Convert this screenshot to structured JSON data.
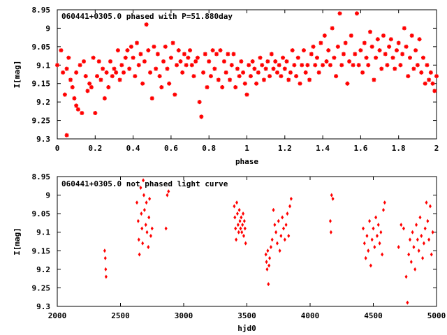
{
  "chart_data": [
    {
      "type": "scatter",
      "title": "060441+0305.0 phased with P=51.880day",
      "xlabel": "phase",
      "ylabel": "I[mag]",
      "xlim": [
        0,
        2
      ],
      "ylim": [
        9.3,
        8.95
      ],
      "y_inverted": true,
      "grid": false,
      "color": "#ff0000",
      "marker": "star",
      "xticks": [
        "0",
        "0.2",
        "0.4",
        "0.6",
        "0.8",
        "1",
        "1.2",
        "1.4",
        "1.6",
        "1.8",
        "2"
      ],
      "yticks": [
        "8.95",
        "9",
        "9.05",
        "9.1",
        "9.15",
        "9.2",
        "9.25",
        "9.3"
      ],
      "points": [
        [
          0.0,
          9.1
        ],
        [
          0.02,
          9.06
        ],
        [
          0.03,
          9.12
        ],
        [
          0.04,
          9.18
        ],
        [
          0.05,
          9.29
        ],
        [
          0.05,
          9.11
        ],
        [
          0.06,
          9.08
        ],
        [
          0.07,
          9.14
        ],
        [
          0.08,
          9.16
        ],
        [
          0.09,
          9.19
        ],
        [
          0.1,
          9.12
        ],
        [
          0.1,
          9.21
        ],
        [
          0.11,
          9.22
        ],
        [
          0.12,
          9.1
        ],
        [
          0.13,
          9.23
        ],
        [
          0.14,
          9.09
        ],
        [
          0.15,
          9.13
        ],
        [
          0.16,
          9.17
        ],
        [
          0.17,
          9.15
        ],
        [
          0.18,
          9.16
        ],
        [
          0.19,
          9.08
        ],
        [
          0.2,
          9.23
        ],
        [
          0.21,
          9.13
        ],
        [
          0.22,
          9.09
        ],
        [
          0.23,
          9.14
        ],
        [
          0.24,
          9.11
        ],
        [
          0.25,
          9.19
        ],
        [
          0.26,
          9.12
        ],
        [
          0.27,
          9.16
        ],
        [
          0.28,
          9.09
        ],
        [
          0.29,
          9.13
        ],
        [
          0.3,
          9.11
        ],
        [
          0.31,
          9.12
        ],
        [
          0.32,
          9.06
        ],
        [
          0.33,
          9.14
        ],
        [
          0.34,
          9.1
        ],
        [
          0.35,
          9.12
        ],
        [
          0.36,
          9.08
        ],
        [
          0.37,
          9.06
        ],
        [
          0.38,
          9.11
        ],
        [
          0.39,
          9.05
        ],
        [
          0.4,
          9.08
        ],
        [
          0.41,
          9.13
        ],
        [
          0.42,
          9.04
        ],
        [
          0.43,
          9.1
        ],
        [
          0.44,
          9.07
        ],
        [
          0.45,
          9.15
        ],
        [
          0.46,
          9.09
        ],
        [
          0.47,
          8.99
        ],
        [
          0.48,
          9.06
        ],
        [
          0.49,
          9.12
        ],
        [
          0.5,
          9.19
        ],
        [
          0.51,
          9.05
        ],
        [
          0.52,
          9.11
        ],
        [
          0.53,
          9.07
        ],
        [
          0.54,
          9.13
        ],
        [
          0.55,
          9.16
        ],
        [
          0.56,
          9.09
        ],
        [
          0.57,
          9.05
        ],
        [
          0.58,
          9.11
        ],
        [
          0.59,
          9.15
        ],
        [
          0.6,
          9.08
        ],
        [
          0.61,
          9.04
        ],
        [
          0.62,
          9.18
        ],
        [
          0.63,
          9.1
        ],
        [
          0.64,
          9.06
        ],
        [
          0.65,
          9.09
        ],
        [
          0.66,
          9.12
        ],
        [
          0.67,
          9.07
        ],
        [
          0.68,
          9.1
        ],
        [
          0.69,
          9.08
        ],
        [
          0.7,
          9.06
        ],
        [
          0.71,
          9.1
        ],
        [
          0.72,
          9.13
        ],
        [
          0.73,
          9.09
        ],
        [
          0.74,
          9.08
        ],
        [
          0.75,
          9.2
        ],
        [
          0.76,
          9.24
        ],
        [
          0.77,
          9.12
        ],
        [
          0.78,
          9.07
        ],
        [
          0.79,
          9.16
        ],
        [
          0.8,
          9.09
        ],
        [
          0.81,
          9.13
        ],
        [
          0.82,
          9.06
        ],
        [
          0.83,
          9.11
        ],
        [
          0.84,
          9.07
        ],
        [
          0.85,
          9.14
        ],
        [
          0.86,
          9.06
        ],
        [
          0.87,
          9.16
        ],
        [
          0.88,
          9.09
        ],
        [
          0.89,
          9.12
        ],
        [
          0.9,
          9.07
        ],
        [
          0.91,
          9.14
        ],
        [
          0.92,
          9.1
        ],
        [
          0.93,
          9.07
        ],
        [
          0.94,
          9.16
        ],
        [
          0.95,
          9.11
        ],
        [
          0.96,
          9.13
        ],
        [
          0.97,
          9.09
        ],
        [
          0.98,
          9.12
        ],
        [
          0.99,
          9.15
        ],
        [
          1.0,
          9.18
        ],
        [
          1.01,
          9.1
        ],
        [
          1.02,
          9.13
        ],
        [
          1.03,
          9.09
        ],
        [
          1.04,
          9.11
        ],
        [
          1.05,
          9.15
        ],
        [
          1.06,
          9.12
        ],
        [
          1.07,
          9.08
        ],
        [
          1.08,
          9.1
        ],
        [
          1.09,
          9.14
        ],
        [
          1.1,
          9.11
        ],
        [
          1.11,
          9.09
        ],
        [
          1.12,
          9.13
        ],
        [
          1.13,
          9.07
        ],
        [
          1.14,
          9.11
        ],
        [
          1.15,
          9.09
        ],
        [
          1.16,
          9.12
        ],
        [
          1.17,
          9.1
        ],
        [
          1.18,
          9.13
        ],
        [
          1.19,
          9.08
        ],
        [
          1.2,
          9.11
        ],
        [
          1.21,
          9.09
        ],
        [
          1.22,
          9.14
        ],
        [
          1.23,
          9.12
        ],
        [
          1.24,
          9.06
        ],
        [
          1.25,
          9.1
        ],
        [
          1.26,
          9.13
        ],
        [
          1.27,
          9.08
        ],
        [
          1.28,
          9.15
        ],
        [
          1.29,
          9.1
        ],
        [
          1.3,
          9.06
        ],
        [
          1.31,
          9.12
        ],
        [
          1.32,
          9.1
        ],
        [
          1.33,
          9.14
        ],
        [
          1.34,
          9.07
        ],
        [
          1.35,
          9.05
        ],
        [
          1.36,
          9.1
        ],
        [
          1.37,
          9.08
        ],
        [
          1.38,
          9.12
        ],
        [
          1.39,
          9.04
        ],
        [
          1.4,
          9.1
        ],
        [
          1.41,
          9.02
        ],
        [
          1.42,
          9.09
        ],
        [
          1.43,
          9.06
        ],
        [
          1.44,
          9.1
        ],
        [
          1.45,
          9.0
        ],
        [
          1.46,
          9.08
        ],
        [
          1.47,
          9.13
        ],
        [
          1.48,
          9.05
        ],
        [
          1.49,
          8.96
        ],
        [
          1.5,
          9.1
        ],
        [
          1.51,
          9.07
        ],
        [
          1.52,
          9.04
        ],
        [
          1.53,
          9.15
        ],
        [
          1.54,
          9.09
        ],
        [
          1.55,
          9.02
        ],
        [
          1.56,
          9.1
        ],
        [
          1.57,
          9.07
        ],
        [
          1.58,
          8.96
        ],
        [
          1.59,
          9.1
        ],
        [
          1.6,
          9.06
        ],
        [
          1.61,
          9.12
        ],
        [
          1.62,
          9.04
        ],
        [
          1.63,
          9.08
        ],
        [
          1.64,
          9.1
        ],
        [
          1.65,
          9.01
        ],
        [
          1.66,
          9.05
        ],
        [
          1.67,
          9.14
        ],
        [
          1.68,
          9.08
        ],
        [
          1.69,
          9.03
        ],
        [
          1.7,
          9.06
        ],
        [
          1.71,
          9.11
        ],
        [
          1.72,
          9.02
        ],
        [
          1.73,
          9.07
        ],
        [
          1.74,
          9.1
        ],
        [
          1.75,
          9.05
        ],
        [
          1.76,
          9.03
        ],
        [
          1.77,
          9.08
        ],
        [
          1.78,
          9.11
        ],
        [
          1.79,
          9.06
        ],
        [
          1.8,
          9.04
        ],
        [
          1.81,
          9.1
        ],
        [
          1.82,
          9.07
        ],
        [
          1.83,
          9.0
        ],
        [
          1.84,
          9.05
        ],
        [
          1.85,
          9.13
        ],
        [
          1.86,
          9.08
        ],
        [
          1.87,
          9.02
        ],
        [
          1.88,
          9.11
        ],
        [
          1.89,
          9.06
        ],
        [
          1.9,
          9.1
        ],
        [
          1.91,
          9.03
        ],
        [
          1.92,
          9.12
        ],
        [
          1.93,
          9.08
        ],
        [
          1.94,
          9.15
        ],
        [
          1.95,
          9.1
        ],
        [
          1.96,
          9.14
        ],
        [
          1.97,
          9.12
        ],
        [
          1.98,
          9.15
        ],
        [
          1.99,
          9.17
        ],
        [
          2.0,
          9.13
        ]
      ]
    },
    {
      "type": "scatter",
      "title": "060441+0305.0 not phased light curve",
      "xlabel": "hjd0",
      "ylabel": "I[mag]",
      "xlim": [
        2000,
        5000
      ],
      "ylim": [
        9.3,
        8.95
      ],
      "y_inverted": true,
      "grid": false,
      "color": "#ff0000",
      "marker": "diamond",
      "xticks": [
        "2000",
        "2500",
        "3000",
        "3500",
        "4000",
        "4500",
        "5000"
      ],
      "yticks": [
        "8.95",
        "9",
        "9.05",
        "9.1",
        "9.15",
        "9.2",
        "9.25",
        "9.3"
      ],
      "points": [
        [
          2375,
          9.15
        ],
        [
          2380,
          9.17
        ],
        [
          2383,
          9.2
        ],
        [
          2386,
          9.22
        ],
        [
          2630,
          9.02
        ],
        [
          2640,
          9.07
        ],
        [
          2645,
          9.12
        ],
        [
          2650,
          9.16
        ],
        [
          2660,
          8.98
        ],
        [
          2665,
          9.05
        ],
        [
          2670,
          9.09
        ],
        [
          2675,
          9.13
        ],
        [
          2680,
          8.96
        ],
        [
          2685,
          9.0
        ],
        [
          2690,
          9.04
        ],
        [
          2700,
          9.08
        ],
        [
          2705,
          9.02
        ],
        [
          2710,
          9.1
        ],
        [
          2720,
          9.14
        ],
        [
          2725,
          9.06
        ],
        [
          2730,
          9.01
        ],
        [
          2740,
          9.11
        ],
        [
          2750,
          9.09
        ],
        [
          2860,
          9.09
        ],
        [
          2870,
          9.0
        ],
        [
          2880,
          8.99
        ],
        [
          3400,
          9.03
        ],
        [
          3405,
          9.06
        ],
        [
          3410,
          9.09
        ],
        [
          3415,
          9.12
        ],
        [
          3420,
          9.02
        ],
        [
          3425,
          9.05
        ],
        [
          3430,
          9.08
        ],
        [
          3435,
          9.1
        ],
        [
          3440,
          9.04
        ],
        [
          3445,
          9.07
        ],
        [
          3450,
          9.09
        ],
        [
          3455,
          9.06
        ],
        [
          3460,
          9.1
        ],
        [
          3465,
          9.08
        ],
        [
          3470,
          9.05
        ],
        [
          3475,
          9.11
        ],
        [
          3480,
          9.07
        ],
        [
          3485,
          9.09
        ],
        [
          3490,
          9.13
        ],
        [
          3650,
          9.16
        ],
        [
          3655,
          9.18
        ],
        [
          3660,
          9.2
        ],
        [
          3665,
          9.15
        ],
        [
          3670,
          9.24
        ],
        [
          3675,
          9.19
        ],
        [
          3680,
          9.17
        ],
        [
          3690,
          9.14
        ],
        [
          3700,
          9.12
        ],
        [
          3710,
          9.04
        ],
        [
          3720,
          9.08
        ],
        [
          3730,
          9.1
        ],
        [
          3740,
          9.13
        ],
        [
          3750,
          9.07
        ],
        [
          3760,
          9.15
        ],
        [
          3770,
          9.11
        ],
        [
          3780,
          9.06
        ],
        [
          3790,
          9.09
        ],
        [
          3800,
          9.12
        ],
        [
          3810,
          9.08
        ],
        [
          3820,
          9.05
        ],
        [
          3830,
          9.11
        ],
        [
          3840,
          9.03
        ],
        [
          3850,
          9.01
        ],
        [
          4160,
          9.07
        ],
        [
          4165,
          9.1
        ],
        [
          4170,
          9.0
        ],
        [
          4180,
          9.01
        ],
        [
          4420,
          9.09
        ],
        [
          4430,
          9.13
        ],
        [
          4440,
          9.17
        ],
        [
          4450,
          9.11
        ],
        [
          4460,
          9.15
        ],
        [
          4470,
          9.07
        ],
        [
          4480,
          9.19
        ],
        [
          4490,
          9.12
        ],
        [
          4500,
          9.09
        ],
        [
          4510,
          9.14
        ],
        [
          4520,
          9.06
        ],
        [
          4530,
          9.11
        ],
        [
          4540,
          9.08
        ],
        [
          4550,
          9.13
        ],
        [
          4560,
          9.1
        ],
        [
          4570,
          9.16
        ],
        [
          4580,
          9.04
        ],
        [
          4590,
          9.02
        ],
        [
          4700,
          9.14
        ],
        [
          4720,
          9.08
        ],
        [
          4740,
          9.09
        ],
        [
          4760,
          9.22
        ],
        [
          4770,
          9.29
        ],
        [
          4780,
          9.16
        ],
        [
          4790,
          9.12
        ],
        [
          4800,
          9.18
        ],
        [
          4810,
          9.1
        ],
        [
          4820,
          9.14
        ],
        [
          4830,
          9.2
        ],
        [
          4840,
          9.08
        ],
        [
          4850,
          9.12
        ],
        [
          4860,
          9.15
        ],
        [
          4870,
          9.06
        ],
        [
          4880,
          9.11
        ],
        [
          4890,
          9.17
        ],
        [
          4900,
          9.13
        ],
        [
          4910,
          9.09
        ],
        [
          4920,
          9.02
        ],
        [
          4930,
          9.07
        ],
        [
          4940,
          9.12
        ],
        [
          4950,
          9.03
        ],
        [
          4960,
          9.16
        ],
        [
          4970,
          9.1
        ]
      ]
    }
  ]
}
